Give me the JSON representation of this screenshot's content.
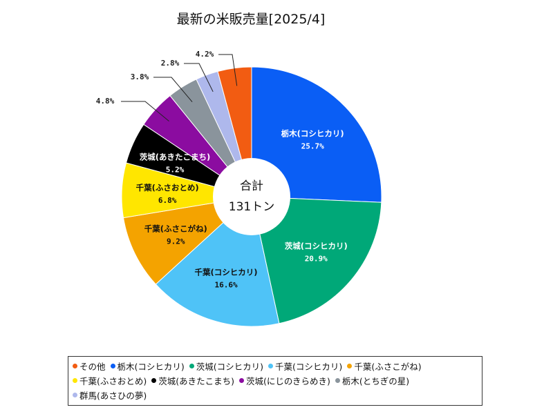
{
  "chart_data": {
    "type": "pie",
    "title": "最新の米販売量[2025/4]",
    "center_label": "合計",
    "center_value": "131トン",
    "slices": [
      {
        "name": "栃木(コシヒカリ)",
        "value": 25.7,
        "label": "25.7%",
        "color": "#0a5ef5",
        "text_color": "#ffffff",
        "show_name": true
      },
      {
        "name": "茨城(コシヒカリ)",
        "value": 20.9,
        "label": "20.9%",
        "color": "#00a878",
        "text_color": "#ffffff",
        "show_name": true
      },
      {
        "name": "千葉(コシヒカリ)",
        "value": 16.6,
        "label": "16.6%",
        "color": "#4fc3f7",
        "text_color": "#111111",
        "show_name": true
      },
      {
        "name": "千葉(ふさこがね)",
        "value": 9.2,
        "label": "9.2%",
        "color": "#f4a300",
        "text_color": "#111111",
        "show_name": true
      },
      {
        "name": "千葉(ふさおとめ)",
        "value": 6.8,
        "label": "6.8%",
        "color": "#ffe600",
        "text_color": "#111111",
        "show_name": true
      },
      {
        "name": "茨城(あきたこまち)",
        "value": 5.2,
        "label": "5.2%",
        "color": "#000000",
        "text_color": "#ffffff",
        "show_name": true
      },
      {
        "name": "茨城(にじのきらめき)",
        "value": 4.8,
        "label": "4.8%",
        "color": "#8b0ca0",
        "text_color": "#111111",
        "show_name": false
      },
      {
        "name": "栃木(とちぎの星)",
        "value": 3.8,
        "label": "3.8%",
        "color": "#8a949c",
        "text_color": "#111111",
        "show_name": false
      },
      {
        "name": "群馬(あさひの夢)",
        "value": 2.8,
        "label": "2.8%",
        "color": "#aeb8ec",
        "text_color": "#111111",
        "show_name": false
      },
      {
        "name": "その他",
        "value": 4.2,
        "label": "4.2%",
        "color": "#f25c12",
        "text_color": "#111111",
        "show_name": false
      }
    ],
    "legend_order": [
      "その他",
      "栃木(コシヒカリ)",
      "茨城(コシヒカリ)",
      "千葉(コシヒカリ)",
      "千葉(ふさこがね)",
      "千葉(ふさおとめ)",
      "茨城(あきたこまち)",
      "茨城(にじのきらめき)",
      "栃木(とちぎの星)",
      "群馬(あさひの夢)"
    ],
    "legend_placement": "bottom",
    "start_angle": "12 o'clock",
    "direction": "clockwise",
    "donut": true
  }
}
